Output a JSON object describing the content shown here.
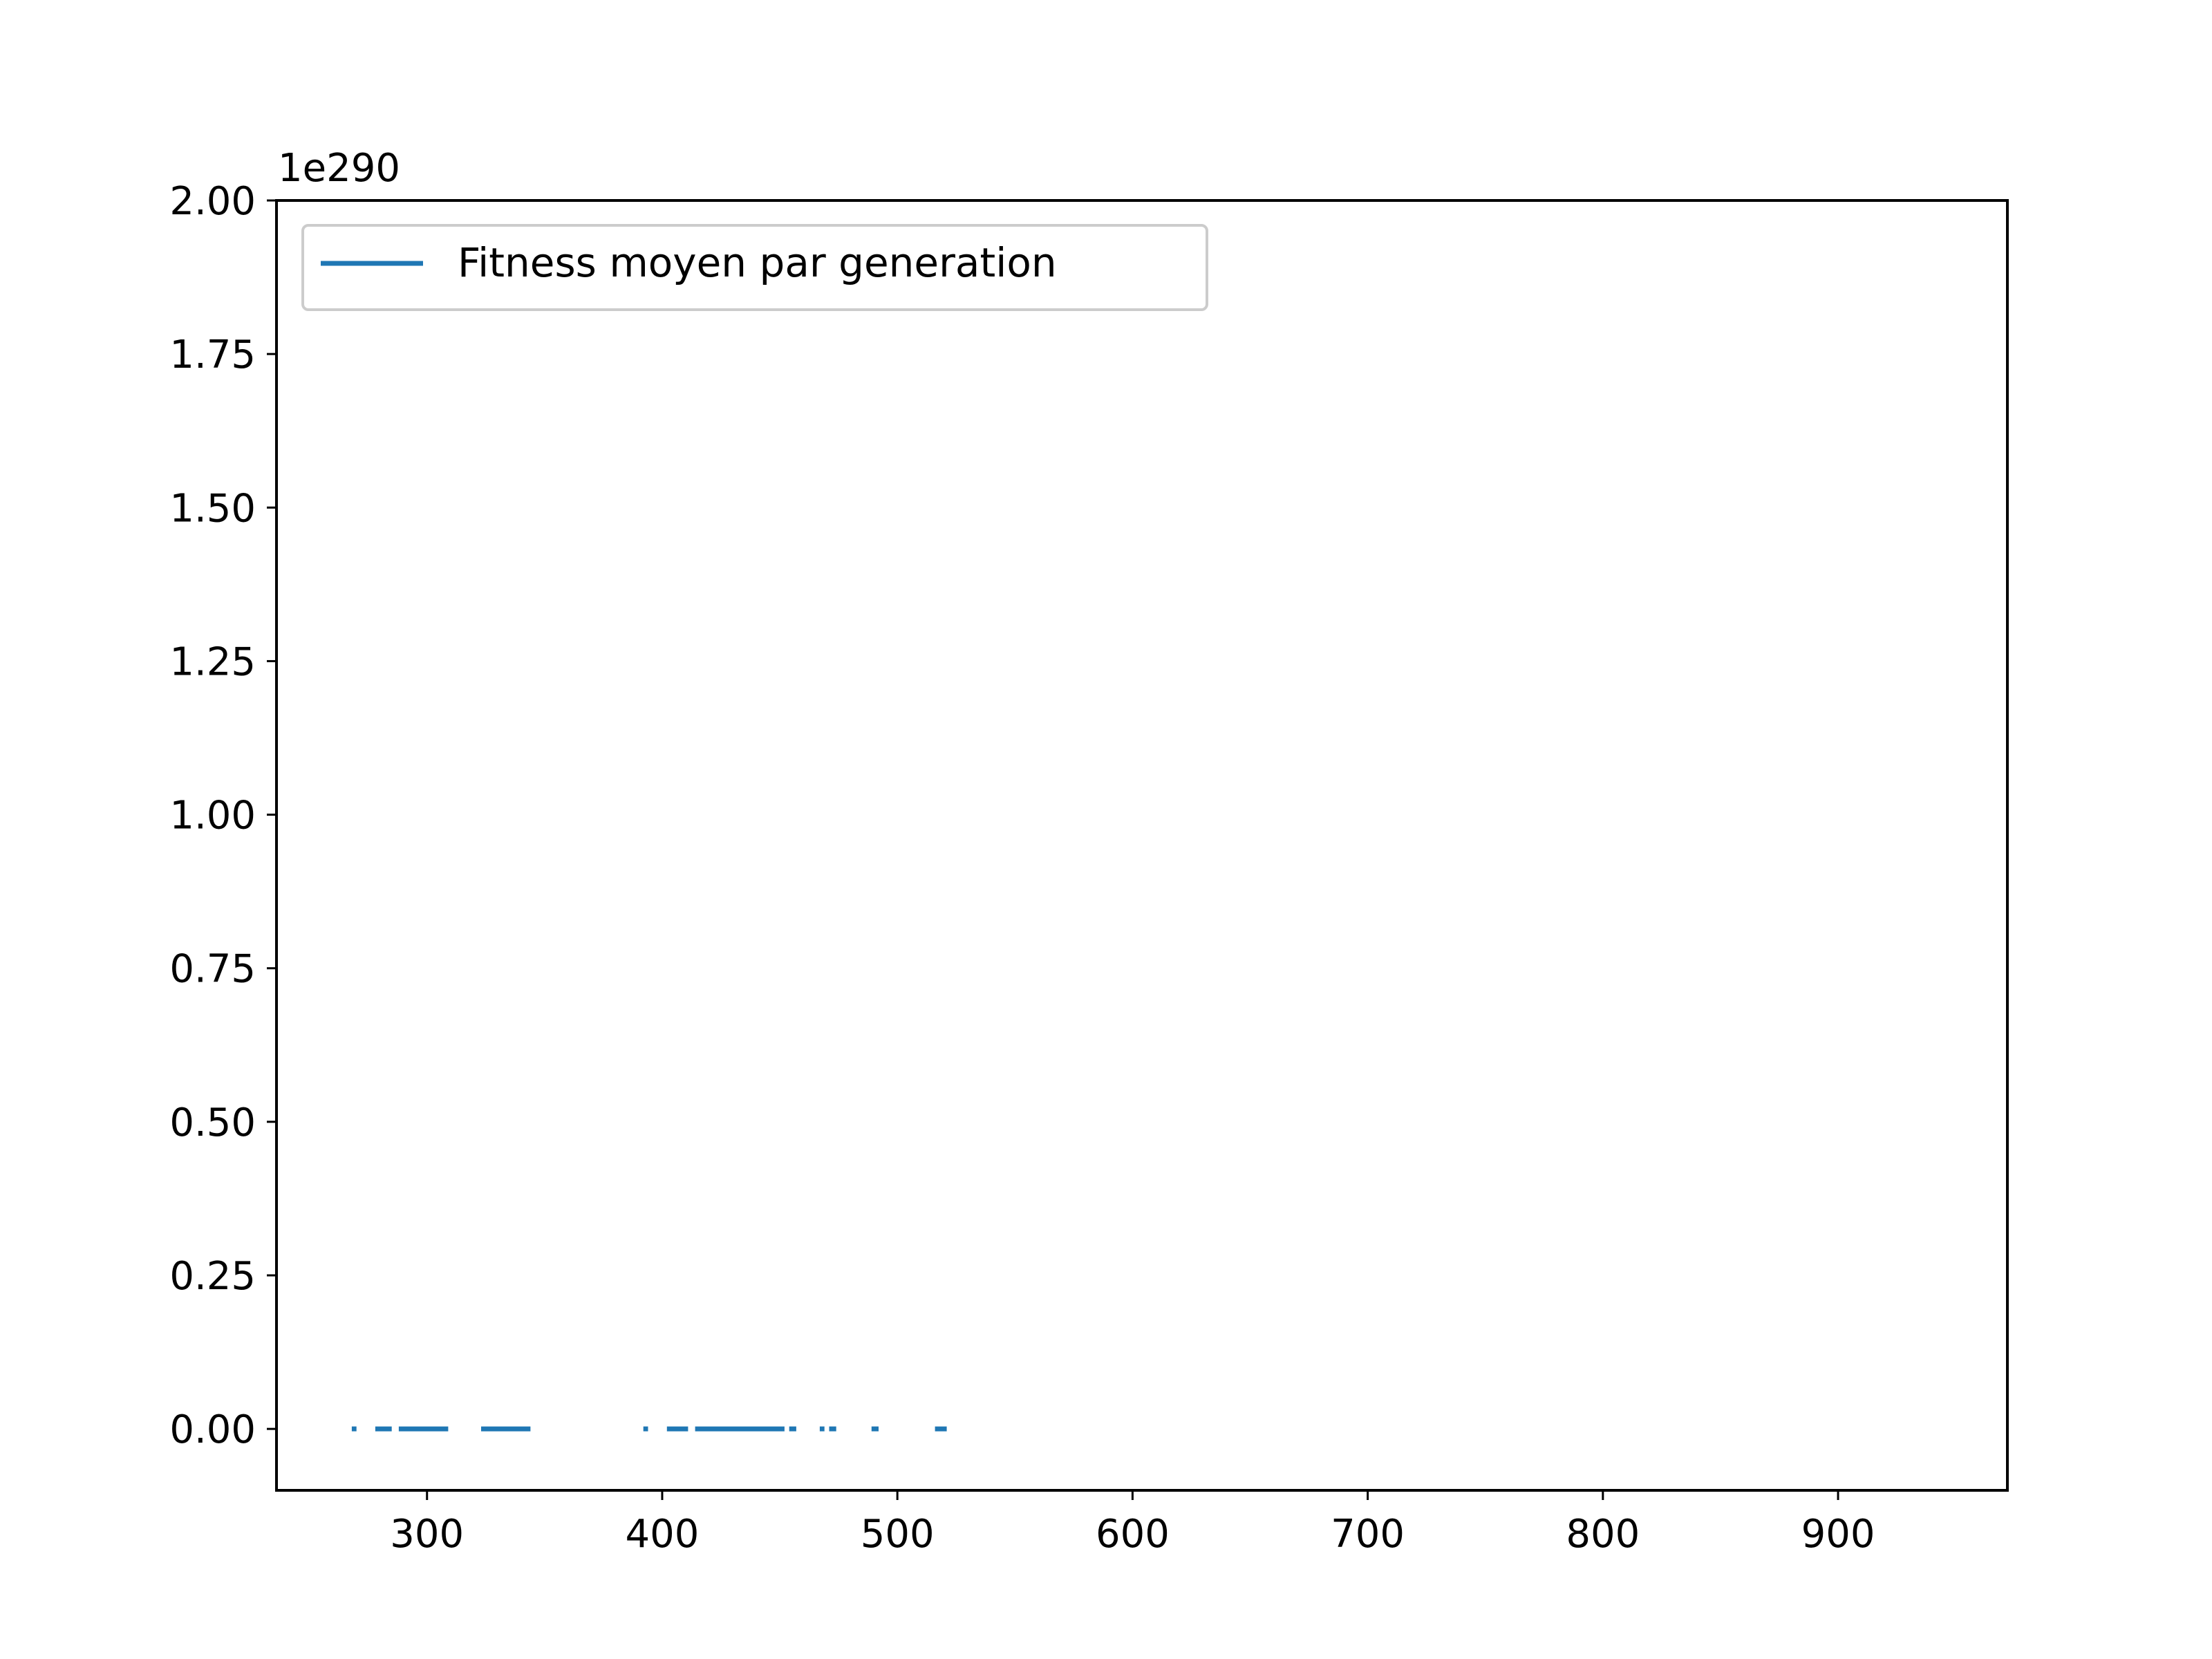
{
  "chart_data": {
    "type": "line",
    "title": "",
    "xlabel": "",
    "ylabel": "",
    "xlim": [
      236,
      972
    ],
    "ylim": [
      -0.1,
      2.0
    ],
    "y_offset_text": "1e290",
    "x_ticks": [
      300,
      400,
      500,
      600,
      700,
      800,
      900
    ],
    "x_tick_labels": [
      "300",
      "400",
      "500",
      "600",
      "700",
      "800",
      "900"
    ],
    "y_ticks": [
      0.0,
      0.25,
      0.5,
      0.75,
      1.0,
      1.25,
      1.5,
      1.75,
      2.0
    ],
    "y_tick_labels": [
      "0.00",
      "0.25",
      "0.50",
      "0.75",
      "1.00",
      "1.25",
      "1.50",
      "1.75",
      "2.00"
    ],
    "grid": false,
    "legend": {
      "position": "top-left",
      "entries": [
        "Fitness moyen par generation"
      ]
    },
    "color": "#1f77b4",
    "series": [
      {
        "name": "Fitness moyen par generation",
        "segments": [
          [
            [
              268,
              0
            ],
            [
              270,
              0
            ]
          ],
          [
            [
              278,
              0
            ],
            [
              285,
              0
            ]
          ],
          [
            [
              288,
              0
            ],
            [
              309,
              0
            ]
          ],
          [
            [
              323,
              0
            ],
            [
              344,
              0
            ]
          ],
          [
            [
              392,
              0
            ],
            [
              394,
              0
            ]
          ],
          [
            [
              402,
              0
            ],
            [
              411,
              0
            ]
          ],
          [
            [
              414,
              0
            ],
            [
              452,
              0
            ]
          ],
          [
            [
              454,
              0
            ],
            [
              457,
              0
            ]
          ],
          [
            [
              467,
              0
            ],
            [
              469,
              0
            ]
          ],
          [
            [
              471,
              0
            ],
            [
              474,
              0
            ]
          ],
          [
            [
              489,
              0
            ],
            [
              492,
              0
            ]
          ],
          [
            [
              516,
              0
            ],
            [
              521,
              0
            ]
          ]
        ]
      }
    ]
  }
}
